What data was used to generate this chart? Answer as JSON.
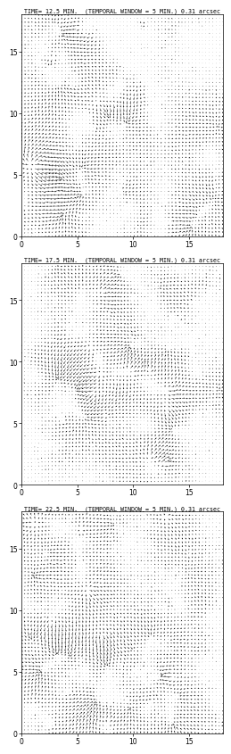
{
  "panels": [
    {
      "title": "TIME= 12.5 MIN.  (TEMPORAL WINDOW = 5 MIN.) 0.31 arcsec",
      "seed": 42
    },
    {
      "title": "TIME= 17.5 MIN.  (TEMPORAL WINDOW = 5 MIN.) 0.31 arcsec",
      "seed": 123
    },
    {
      "title": "TIME= 22.5 MIN.  (TEMPORAL WINDOW = 5 MIN.) 0.31 arcsec",
      "seed": 77
    }
  ],
  "xlim": [
    0,
    18
  ],
  "ylim": [
    0,
    18
  ],
  "xticks": [
    0,
    5,
    10,
    15
  ],
  "yticks": [
    0,
    5,
    10,
    15
  ],
  "grid_n": 60,
  "n_cells": 30,
  "n_rot": 15,
  "title_fontsize": 4.8,
  "tick_fontsize": 5.5,
  "background_color": "#ffffff",
  "arrow_color": "#000000",
  "figsize": [
    2.6,
    8.23
  ],
  "dpi": 100
}
